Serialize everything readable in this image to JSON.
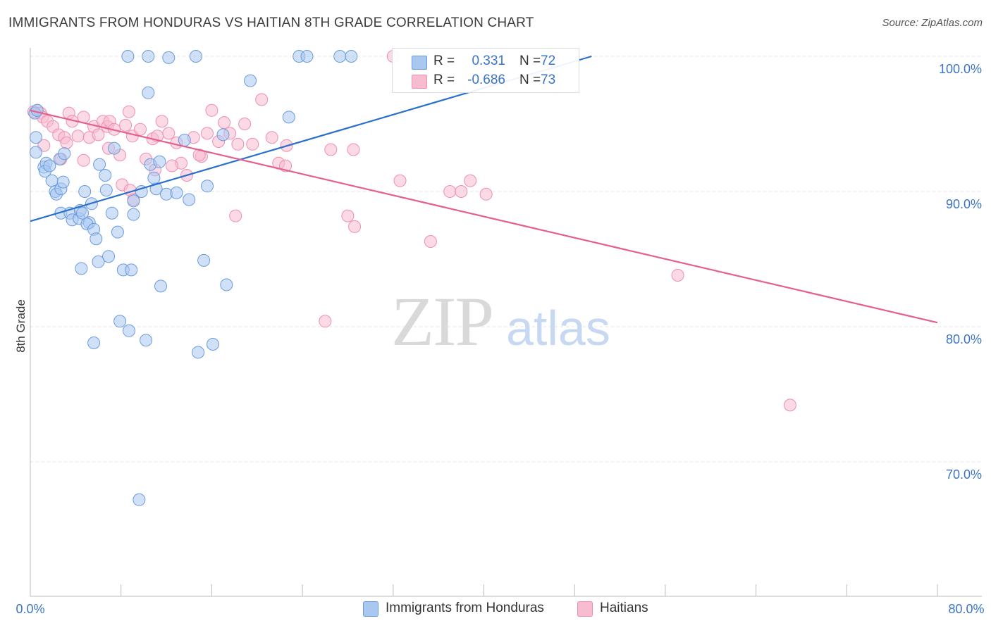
{
  "title": "IMMIGRANTS FROM HONDURAS VS HAITIAN 8TH GRADE CORRELATION CHART",
  "source": "Source: ZipAtlas.com",
  "watermark": {
    "zip": "ZIP",
    "atlas": "atlas"
  },
  "colors": {
    "blue_fill": "#a9c8f0",
    "blue_stroke": "#6a9be0",
    "blue_line": "#2a70cc",
    "pink_fill": "#f7bccf",
    "pink_stroke": "#ee8fae",
    "pink_line": "#e4608f",
    "axis_text": "#3a74c8",
    "grid": "#e3e3e3"
  },
  "legend": {
    "rows": [
      {
        "r_label": "R =",
        "r_value": "0.331",
        "n_label": "N =",
        "n_value": "72",
        "color": "blue"
      },
      {
        "r_label": "R =",
        "r_value": "-0.686",
        "n_label": "N =",
        "n_value": "73",
        "color": "pink"
      }
    ]
  },
  "bottom_legend": [
    {
      "label": "Immigrants from Honduras",
      "color": "blue"
    },
    {
      "label": "Haitians",
      "color": "pink"
    }
  ],
  "chart_data": {
    "type": "scatter",
    "title": "IMMIGRANTS FROM HONDURAS VS HAITIAN 8TH GRADE CORRELATION CHART",
    "xlabel": "",
    "ylabel": "8th Grade",
    "xlim": [
      0,
      80
    ],
    "ylim": [
      60.5,
      102.5
    ],
    "x_tick_labels": [
      "0.0%",
      "80.0%"
    ],
    "y_ticks": [
      100,
      90,
      80,
      70
    ],
    "y_tick_labels": [
      "100.0%",
      "90.0%",
      "80.0%",
      "70.0%"
    ],
    "grid": true,
    "legend_position": "top-center",
    "series": [
      {
        "name": "Immigrants from Honduras",
        "color": "blue",
        "trend": {
          "x": [
            0,
            49.5
          ],
          "y": [
            87.8,
            100.0
          ]
        },
        "points": [
          [
            0.4,
            95.8
          ],
          [
            0.5,
            94.0
          ],
          [
            0.5,
            92.9
          ],
          [
            0.6,
            96.0
          ],
          [
            1.2,
            91.8
          ],
          [
            1.4,
            92.1
          ],
          [
            1.3,
            91.5
          ],
          [
            1.7,
            91.9
          ],
          [
            1.9,
            90.8
          ],
          [
            2.2,
            90.0
          ],
          [
            2.3,
            89.8
          ],
          [
            2.6,
            92.4
          ],
          [
            2.7,
            90.2
          ],
          [
            2.9,
            90.7
          ],
          [
            3.0,
            92.8
          ],
          [
            2.7,
            88.4
          ],
          [
            3.5,
            88.4
          ],
          [
            3.7,
            87.9
          ],
          [
            4.3,
            88.0
          ],
          [
            4.4,
            88.6
          ],
          [
            4.6,
            88.4
          ],
          [
            4.8,
            90.0
          ],
          [
            5.2,
            87.7
          ],
          [
            5.0,
            87.6
          ],
          [
            5.4,
            89.1
          ],
          [
            5.6,
            87.2
          ],
          [
            5.8,
            86.5
          ],
          [
            6.1,
            92.0
          ],
          [
            6.7,
            90.1
          ],
          [
            6.9,
            85.2
          ],
          [
            7.2,
            88.4
          ],
          [
            7.4,
            93.2
          ],
          [
            7.7,
            87.0
          ],
          [
            8.2,
            84.2
          ],
          [
            9.1,
            89.3
          ],
          [
            9.1,
            88.3
          ],
          [
            9.8,
            90.0
          ],
          [
            10.6,
            92.0
          ],
          [
            11.1,
            90.2
          ],
          [
            11.4,
            92.2
          ],
          [
            12.0,
            89.8
          ],
          [
            13.6,
            93.8
          ],
          [
            14.0,
            89.4
          ],
          [
            15.6,
            90.4
          ],
          [
            17.0,
            94.2
          ],
          [
            19.4,
            98.2
          ],
          [
            22.8,
            95.5
          ],
          [
            8.6,
            100.0
          ],
          [
            10.4,
            100.0
          ],
          [
            12.2,
            99.9
          ],
          [
            14.6,
            100.0
          ],
          [
            23.7,
            100.0
          ],
          [
            24.4,
            100.0
          ],
          [
            27.3,
            100.0
          ],
          [
            28.3,
            100.0
          ],
          [
            10.4,
            97.3
          ],
          [
            4.5,
            84.3
          ],
          [
            6.0,
            84.8
          ],
          [
            8.9,
            84.2
          ],
          [
            11.5,
            83.0
          ],
          [
            15.3,
            84.9
          ],
          [
            17.3,
            83.1
          ],
          [
            7.9,
            80.4
          ],
          [
            8.7,
            79.7
          ],
          [
            10.2,
            79.0
          ],
          [
            5.6,
            78.8
          ],
          [
            14.8,
            78.1
          ],
          [
            16.1,
            78.7
          ],
          [
            9.6,
            67.2
          ],
          [
            6.6,
            91.2
          ],
          [
            10.9,
            91.0
          ],
          [
            12.9,
            89.9
          ]
        ]
      },
      {
        "name": "Haitians",
        "color": "pink",
        "trend": {
          "x": [
            0,
            80
          ],
          "y": [
            96.0,
            80.3
          ]
        },
        "points": [
          [
            0.3,
            95.9
          ],
          [
            0.6,
            96.0
          ],
          [
            0.9,
            95.8
          ],
          [
            1.1,
            95.5
          ],
          [
            1.5,
            95.2
          ],
          [
            2.0,
            94.8
          ],
          [
            2.5,
            94.2
          ],
          [
            3.0,
            94.0
          ],
          [
            3.4,
            95.8
          ],
          [
            3.7,
            95.2
          ],
          [
            4.2,
            94.1
          ],
          [
            4.7,
            95.5
          ],
          [
            5.2,
            94.0
          ],
          [
            5.6,
            94.8
          ],
          [
            6.0,
            94.2
          ],
          [
            6.4,
            95.2
          ],
          [
            6.8,
            94.8
          ],
          [
            7.0,
            95.2
          ],
          [
            7.4,
            94.6
          ],
          [
            7.9,
            92.7
          ],
          [
            8.4,
            94.9
          ],
          [
            8.7,
            95.9
          ],
          [
            9.0,
            94.1
          ],
          [
            9.7,
            94.6
          ],
          [
            10.2,
            92.4
          ],
          [
            10.8,
            93.9
          ],
          [
            11.2,
            94.1
          ],
          [
            11.6,
            95.2
          ],
          [
            12.2,
            94.3
          ],
          [
            12.9,
            93.6
          ],
          [
            13.3,
            92.1
          ],
          [
            13.8,
            91.2
          ],
          [
            14.4,
            94.0
          ],
          [
            15.1,
            92.6
          ],
          [
            15.6,
            94.3
          ],
          [
            16.0,
            96.0
          ],
          [
            16.6,
            93.7
          ],
          [
            17.1,
            95.1
          ],
          [
            17.6,
            94.3
          ],
          [
            18.3,
            93.5
          ],
          [
            18.9,
            95.0
          ],
          [
            19.6,
            93.5
          ],
          [
            20.4,
            96.8
          ],
          [
            21.3,
            94.0
          ],
          [
            21.9,
            92.1
          ],
          [
            22.6,
            93.4
          ],
          [
            1.2,
            93.4
          ],
          [
            2.7,
            92.4
          ],
          [
            3.2,
            93.6
          ],
          [
            4.7,
            92.3
          ],
          [
            6.9,
            93.2
          ],
          [
            11.0,
            91.6
          ],
          [
            12.5,
            91.9
          ],
          [
            14.9,
            92.7
          ],
          [
            8.1,
            90.5
          ],
          [
            8.8,
            90.1
          ],
          [
            9.1,
            89.4
          ],
          [
            22.5,
            91.9
          ],
          [
            26.5,
            93.1
          ],
          [
            28.5,
            93.1
          ],
          [
            18.1,
            88.2
          ],
          [
            28.0,
            88.2
          ],
          [
            28.6,
            87.4
          ],
          [
            32.6,
            90.8
          ],
          [
            37.0,
            90.0
          ],
          [
            38.0,
            90.0
          ],
          [
            38.8,
            90.8
          ],
          [
            40.2,
            89.8
          ],
          [
            35.3,
            86.3
          ],
          [
            26.0,
            80.4
          ],
          [
            57.1,
            83.8
          ],
          [
            67.0,
            74.2
          ],
          [
            32.0,
            100.0
          ]
        ]
      }
    ]
  }
}
